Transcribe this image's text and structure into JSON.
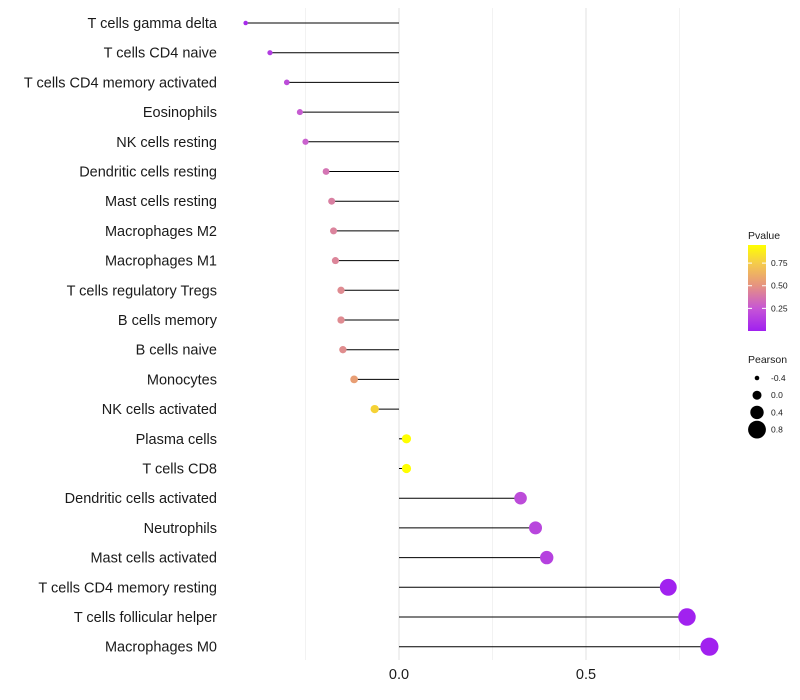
{
  "chart_data": {
    "type": "lollipop",
    "x_axis": {
      "min": -0.9,
      "max": 1.0,
      "ticks": [
        {
          "value": 0.0,
          "label": "0.0"
        },
        {
          "value": 0.5,
          "label": "0.5"
        }
      ],
      "minor_gridlines": [
        -0.25,
        0.25,
        0.75
      ]
    },
    "points": [
      {
        "label": "T cells gamma delta",
        "pearson": -0.41,
        "pvalue": 0.05
      },
      {
        "label": "T cells CD4 naive",
        "pearson": -0.345,
        "pvalue": 0.13
      },
      {
        "label": "T cells CD4 memory activated",
        "pearson": -0.3,
        "pvalue": 0.2
      },
      {
        "label": "Eosinophils",
        "pearson": -0.265,
        "pvalue": 0.27
      },
      {
        "label": "NK cells resting",
        "pearson": -0.25,
        "pvalue": 0.3
      },
      {
        "label": "Dendritic cells resting",
        "pearson": -0.195,
        "pvalue": 0.4
      },
      {
        "label": "Mast cells resting",
        "pearson": -0.18,
        "pvalue": 0.46
      },
      {
        "label": "Macrophages M2",
        "pearson": -0.175,
        "pvalue": 0.48
      },
      {
        "label": "Macrophages M1",
        "pearson": -0.17,
        "pvalue": 0.49
      },
      {
        "label": "T cells regulatory  Tregs ",
        "pearson": -0.155,
        "pvalue": 0.52
      },
      {
        "label": "B cells memory",
        "pearson": -0.155,
        "pvalue": 0.52
      },
      {
        "label": "B cells naive",
        "pearson": -0.15,
        "pvalue": 0.53
      },
      {
        "label": "Monocytes",
        "pearson": -0.12,
        "pvalue": 0.62
      },
      {
        "label": "NK cells activated",
        "pearson": -0.065,
        "pvalue": 0.8
      },
      {
        "label": "Plasma cells",
        "pearson": 0.02,
        "pvalue": 0.95
      },
      {
        "label": "T cells CD8",
        "pearson": 0.02,
        "pvalue": 0.95
      },
      {
        "label": "Dendritic cells activated",
        "pearson": 0.325,
        "pvalue": 0.2
      },
      {
        "label": "Neutrophils",
        "pearson": 0.365,
        "pvalue": 0.17
      },
      {
        "label": "Mast cells activated",
        "pearson": 0.395,
        "pvalue": 0.15
      },
      {
        "label": "T cells CD4 memory resting",
        "pearson": 0.72,
        "pvalue": 0.01
      },
      {
        "label": "T cells follicular helper",
        "pearson": 0.77,
        "pvalue": 0.01
      },
      {
        "label": "Macrophages M0",
        "pearson": 0.83,
        "pvalue": 0.005
      }
    ],
    "legend_color": {
      "title": "Pvalue",
      "min": 0.0,
      "max": 0.95,
      "ticks": [
        0.25,
        0.5,
        0.75
      ],
      "tick_labels": [
        "0.25",
        "0.50",
        "0.75"
      ],
      "colors": [
        "#a020f0",
        "#cc66cc",
        "#e9a070",
        "#ffff00"
      ]
    },
    "legend_size": {
      "title": "Pearson",
      "values": [
        -0.4,
        0.0,
        0.4,
        0.8
      ],
      "labels": [
        "-0.4",
        "0.0",
        "0.4",
        "0.8"
      ]
    },
    "line_color": "#000000",
    "grid_color": "#ececec"
  }
}
